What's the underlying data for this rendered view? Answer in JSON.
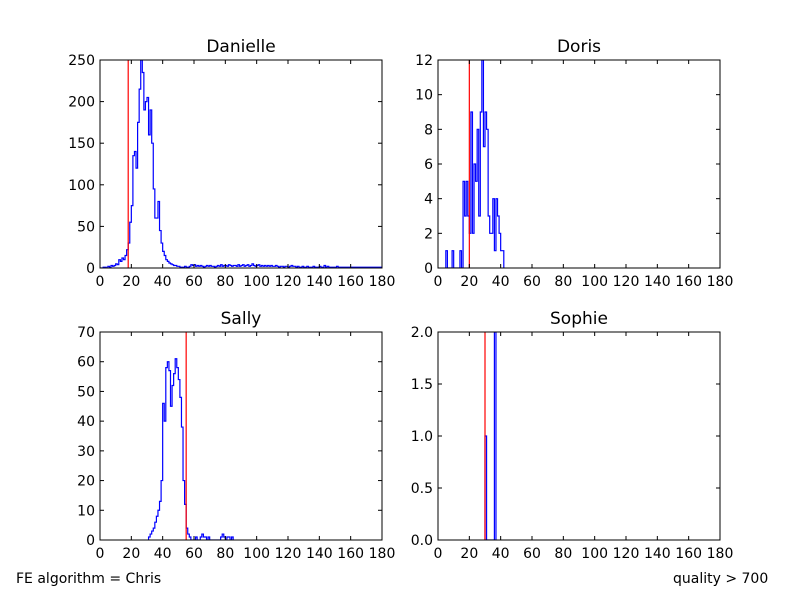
{
  "footer": {
    "left": "FE algorithm = Chris",
    "right": "quality > 700"
  },
  "colors": {
    "histogram": "#0000ff",
    "marker": "#ff0000",
    "axes": "#000000"
  },
  "chart_data": [
    {
      "type": "histogram",
      "title": "Danielle",
      "xlabel": "",
      "ylabel": "",
      "xlim": [
        0,
        180
      ],
      "ylim": [
        0,
        250
      ],
      "xticks": [
        0,
        20,
        40,
        60,
        80,
        100,
        120,
        140,
        160,
        180
      ],
      "yticks": [
        0,
        50,
        100,
        150,
        200,
        250
      ],
      "marker_x": 18,
      "bin_width": 1,
      "bins": [
        [
          0,
          0
        ],
        [
          1,
          0
        ],
        [
          2,
          1
        ],
        [
          3,
          1
        ],
        [
          4,
          0
        ],
        [
          5,
          2
        ],
        [
          6,
          1
        ],
        [
          7,
          3
        ],
        [
          8,
          2
        ],
        [
          9,
          3
        ],
        [
          10,
          5
        ],
        [
          11,
          4
        ],
        [
          12,
          10
        ],
        [
          13,
          8
        ],
        [
          14,
          12
        ],
        [
          15,
          10
        ],
        [
          16,
          15
        ],
        [
          17,
          22
        ],
        [
          18,
          30
        ],
        [
          19,
          55
        ],
        [
          20,
          75
        ],
        [
          21,
          135
        ],
        [
          22,
          140
        ],
        [
          23,
          120
        ],
        [
          24,
          175
        ],
        [
          25,
          215
        ],
        [
          26,
          250
        ],
        [
          27,
          235
        ],
        [
          28,
          190
        ],
        [
          29,
          200
        ],
        [
          30,
          205
        ],
        [
          31,
          160
        ],
        [
          32,
          190
        ],
        [
          33,
          150
        ],
        [
          34,
          95
        ],
        [
          35,
          60
        ],
        [
          36,
          60
        ],
        [
          37,
          80
        ],
        [
          38,
          45
        ],
        [
          39,
          30
        ],
        [
          40,
          20
        ],
        [
          41,
          15
        ],
        [
          42,
          10
        ],
        [
          43,
          8
        ],
        [
          44,
          6
        ],
        [
          45,
          5
        ],
        [
          46,
          4
        ],
        [
          47,
          3
        ],
        [
          48,
          3
        ],
        [
          49,
          2
        ],
        [
          50,
          2
        ],
        [
          51,
          1
        ],
        [
          52,
          1
        ],
        [
          53,
          1
        ],
        [
          54,
          2
        ],
        [
          55,
          1
        ],
        [
          56,
          1
        ],
        [
          57,
          2
        ],
        [
          58,
          4
        ],
        [
          59,
          3
        ],
        [
          60,
          4
        ],
        [
          61,
          2
        ],
        [
          62,
          3
        ],
        [
          63,
          2
        ],
        [
          64,
          3
        ],
        [
          65,
          2
        ],
        [
          66,
          1
        ],
        [
          67,
          2
        ],
        [
          68,
          3
        ],
        [
          69,
          2
        ],
        [
          70,
          3
        ],
        [
          71,
          2
        ],
        [
          72,
          2
        ],
        [
          73,
          1
        ],
        [
          74,
          2
        ],
        [
          75,
          3
        ],
        [
          76,
          2
        ],
        [
          77,
          4
        ],
        [
          78,
          2
        ],
        [
          79,
          3
        ],
        [
          80,
          3
        ],
        [
          81,
          2
        ],
        [
          82,
          4
        ],
        [
          83,
          3
        ],
        [
          84,
          2
        ],
        [
          85,
          3
        ],
        [
          86,
          3
        ],
        [
          87,
          2
        ],
        [
          88,
          4
        ],
        [
          89,
          2
        ],
        [
          90,
          3
        ],
        [
          91,
          4
        ],
        [
          92,
          2
        ],
        [
          93,
          3
        ],
        [
          94,
          4
        ],
        [
          95,
          2
        ],
        [
          96,
          3
        ],
        [
          97,
          5
        ],
        [
          98,
          3
        ],
        [
          99,
          2
        ],
        [
          100,
          3
        ],
        [
          101,
          4
        ],
        [
          102,
          2
        ],
        [
          103,
          3
        ],
        [
          104,
          2
        ],
        [
          105,
          3
        ],
        [
          106,
          2
        ],
        [
          107,
          3
        ],
        [
          108,
          2
        ],
        [
          109,
          3
        ],
        [
          110,
          2
        ],
        [
          111,
          2
        ],
        [
          112,
          3
        ],
        [
          113,
          2
        ],
        [
          114,
          1
        ],
        [
          115,
          2
        ],
        [
          116,
          2
        ],
        [
          117,
          1
        ],
        [
          118,
          2
        ],
        [
          119,
          2
        ],
        [
          120,
          1
        ],
        [
          121,
          2
        ],
        [
          122,
          3
        ],
        [
          123,
          2
        ],
        [
          124,
          2
        ],
        [
          125,
          1
        ],
        [
          126,
          2
        ],
        [
          127,
          1
        ],
        [
          128,
          1
        ],
        [
          129,
          2
        ],
        [
          130,
          1
        ],
        [
          131,
          1
        ],
        [
          132,
          2
        ],
        [
          133,
          1
        ],
        [
          134,
          1
        ],
        [
          135,
          1
        ],
        [
          136,
          2
        ],
        [
          137,
          1
        ],
        [
          138,
          1
        ],
        [
          139,
          1
        ],
        [
          140,
          2
        ],
        [
          141,
          1
        ],
        [
          142,
          1
        ],
        [
          143,
          3
        ],
        [
          144,
          1
        ],
        [
          145,
          2
        ],
        [
          146,
          1
        ],
        [
          147,
          1
        ],
        [
          148,
          1
        ],
        [
          149,
          1
        ],
        [
          150,
          1
        ],
        [
          151,
          2
        ],
        [
          152,
          1
        ],
        [
          153,
          1
        ],
        [
          154,
          1
        ],
        [
          155,
          1
        ],
        [
          156,
          1
        ],
        [
          157,
          1
        ],
        [
          158,
          1
        ],
        [
          159,
          1
        ],
        [
          160,
          1
        ],
        [
          161,
          1
        ],
        [
          162,
          1
        ],
        [
          163,
          1
        ],
        [
          164,
          1
        ],
        [
          165,
          1
        ],
        [
          166,
          1
        ],
        [
          167,
          1
        ],
        [
          168,
          1
        ],
        [
          169,
          1
        ],
        [
          170,
          1
        ],
        [
          171,
          1
        ],
        [
          172,
          1
        ],
        [
          173,
          1
        ],
        [
          174,
          1
        ],
        [
          175,
          1
        ],
        [
          176,
          1
        ],
        [
          177,
          1
        ],
        [
          178,
          1
        ],
        [
          179,
          1
        ]
      ]
    },
    {
      "type": "histogram",
      "title": "Doris",
      "xlabel": "",
      "ylabel": "",
      "xlim": [
        0,
        180
      ],
      "ylim": [
        0,
        12
      ],
      "xticks": [
        0,
        20,
        40,
        60,
        80,
        100,
        120,
        140,
        160,
        180
      ],
      "yticks": [
        0,
        2,
        4,
        6,
        8,
        10,
        12
      ],
      "marker_x": 20,
      "bin_width": 1,
      "bins": [
        [
          5,
          1
        ],
        [
          6,
          0
        ],
        [
          7,
          0
        ],
        [
          8,
          0
        ],
        [
          9,
          1
        ],
        [
          10,
          0
        ],
        [
          11,
          0
        ],
        [
          12,
          0
        ],
        [
          13,
          0
        ],
        [
          14,
          1
        ],
        [
          15,
          0
        ],
        [
          16,
          5
        ],
        [
          17,
          3
        ],
        [
          18,
          5
        ],
        [
          19,
          3
        ],
        [
          20,
          2
        ],
        [
          21,
          9
        ],
        [
          22,
          2
        ],
        [
          23,
          6
        ],
        [
          24,
          5
        ],
        [
          25,
          8
        ],
        [
          26,
          3
        ],
        [
          27,
          9
        ],
        [
          28,
          12
        ],
        [
          29,
          7
        ],
        [
          30,
          9
        ],
        [
          31,
          8
        ],
        [
          32,
          3
        ],
        [
          33,
          2
        ],
        [
          34,
          2
        ],
        [
          35,
          4
        ],
        [
          36,
          1
        ],
        [
          37,
          4
        ],
        [
          38,
          3
        ],
        [
          39,
          2
        ],
        [
          40,
          1
        ],
        [
          41,
          1
        ]
      ]
    },
    {
      "type": "histogram",
      "title": "Sally",
      "xlabel": "",
      "ylabel": "",
      "xlim": [
        0,
        180
      ],
      "ylim": [
        0,
        70
      ],
      "xticks": [
        0,
        20,
        40,
        60,
        80,
        100,
        120,
        140,
        160,
        180
      ],
      "yticks": [
        0,
        10,
        20,
        30,
        40,
        50,
        60,
        70
      ],
      "marker_x": 55,
      "bin_width": 1,
      "bins": [
        [
          31,
          1
        ],
        [
          32,
          2
        ],
        [
          33,
          3
        ],
        [
          34,
          4
        ],
        [
          35,
          6
        ],
        [
          36,
          8
        ],
        [
          37,
          10
        ],
        [
          38,
          13
        ],
        [
          39,
          20
        ],
        [
          40,
          46
        ],
        [
          41,
          40
        ],
        [
          42,
          58
        ],
        [
          43,
          60
        ],
        [
          44,
          57
        ],
        [
          45,
          45
        ],
        [
          46,
          52
        ],
        [
          47,
          56
        ],
        [
          48,
          61
        ],
        [
          49,
          58
        ],
        [
          50,
          54
        ],
        [
          51,
          48
        ],
        [
          52,
          38
        ],
        [
          53,
          20
        ],
        [
          54,
          12
        ],
        [
          55,
          4
        ],
        [
          56,
          2
        ],
        [
          57,
          1
        ],
        [
          58,
          0
        ],
        [
          59,
          0
        ],
        [
          60,
          0
        ],
        [
          61,
          1
        ],
        [
          62,
          0
        ],
        [
          63,
          0
        ],
        [
          64,
          1
        ],
        [
          65,
          2
        ],
        [
          66,
          1
        ],
        [
          67,
          1
        ],
        [
          68,
          0
        ],
        [
          69,
          1
        ],
        [
          70,
          0
        ],
        [
          71,
          0
        ],
        [
          72,
          0
        ],
        [
          73,
          0
        ],
        [
          74,
          0
        ],
        [
          75,
          0
        ],
        [
          76,
          0
        ],
        [
          77,
          1
        ],
        [
          78,
          2
        ],
        [
          79,
          1
        ],
        [
          80,
          0
        ],
        [
          81,
          1
        ],
        [
          82,
          1
        ],
        [
          83,
          0
        ],
        [
          84,
          1
        ]
      ]
    },
    {
      "type": "histogram",
      "title": "Sophie",
      "xlabel": "",
      "ylabel": "",
      "xlim": [
        0,
        180
      ],
      "ylim": [
        0,
        2.0
      ],
      "xticks": [
        0,
        20,
        40,
        60,
        80,
        100,
        120,
        140,
        160,
        180
      ],
      "yticks": [
        0.0,
        0.5,
        1.0,
        1.5,
        2.0
      ],
      "ytick_labels": [
        "0.0",
        "0.5",
        "1.0",
        "1.5",
        "2.0"
      ],
      "marker_x": 30,
      "bin_width": 1,
      "bins": [
        [
          30,
          1
        ],
        [
          31,
          0
        ],
        [
          32,
          0
        ],
        [
          33,
          0
        ],
        [
          34,
          0
        ],
        [
          35,
          0
        ],
        [
          36,
          2
        ]
      ]
    }
  ]
}
